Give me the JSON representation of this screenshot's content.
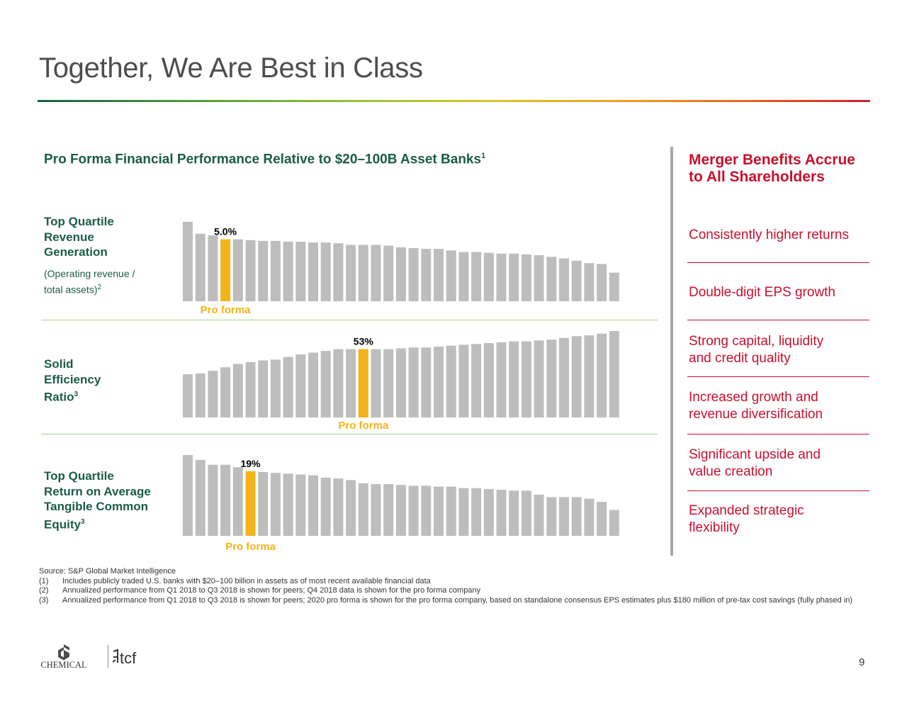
{
  "header": {
    "title": "Together, We Are Best in Class"
  },
  "section": {
    "heading": "Pro Forma Financial Performance Relative to $20–100B Asset Banks",
    "heading_sup": "1"
  },
  "metrics": [
    {
      "label_lines": [
        "Top Quartile",
        "Revenue",
        "Generation"
      ],
      "sub_lines": [
        "(Operating revenue /",
        "total assets)"
      ],
      "sub_sup": "2"
    },
    {
      "label_lines": [
        "Solid",
        "Efficiency",
        "Ratio"
      ],
      "label_sup": "3"
    },
    {
      "label_lines": [
        "Top Quartile",
        "Return on Average",
        "Tangible Common",
        "Equity"
      ],
      "label_sup": "3"
    }
  ],
  "chart_data": [
    {
      "type": "bar",
      "title": "",
      "highlight_label": "5.0%",
      "highlight_caption": "Pro forma",
      "highlight_index": 3,
      "colors": {
        "bar": "#bdbdbd",
        "highlight": "#f5b31a"
      },
      "ylim": [
        0,
        1
      ],
      "values": [
        1.0,
        0.85,
        0.83,
        0.78,
        0.78,
        0.77,
        0.76,
        0.76,
        0.75,
        0.75,
        0.74,
        0.74,
        0.73,
        0.71,
        0.71,
        0.71,
        0.7,
        0.68,
        0.67,
        0.66,
        0.66,
        0.64,
        0.62,
        0.62,
        0.61,
        0.6,
        0.6,
        0.59,
        0.58,
        0.56,
        0.54,
        0.51,
        0.48,
        0.47,
        0.36
      ]
    },
    {
      "type": "bar",
      "title": "",
      "highlight_label": "53%",
      "highlight_caption": "Pro forma",
      "highlight_index": 14,
      "colors": {
        "bar": "#bdbdbd",
        "highlight": "#f5b31a"
      },
      "ylim": [
        0,
        1
      ],
      "values": [
        0.5,
        0.51,
        0.54,
        0.58,
        0.62,
        0.64,
        0.66,
        0.67,
        0.7,
        0.73,
        0.75,
        0.77,
        0.79,
        0.79,
        0.79,
        0.79,
        0.79,
        0.8,
        0.81,
        0.81,
        0.82,
        0.83,
        0.84,
        0.85,
        0.86,
        0.87,
        0.88,
        0.88,
        0.89,
        0.9,
        0.92,
        0.94,
        0.95,
        0.97,
        1.0
      ]
    },
    {
      "type": "bar",
      "title": "",
      "highlight_label": "19%",
      "highlight_caption": "Pro forma",
      "highlight_index": 5,
      "colors": {
        "bar": "#bdbdbd",
        "highlight": "#f5b31a"
      },
      "ylim": [
        0,
        1
      ],
      "values": [
        1.0,
        0.94,
        0.88,
        0.88,
        0.85,
        0.8,
        0.79,
        0.78,
        0.77,
        0.76,
        0.75,
        0.72,
        0.71,
        0.69,
        0.65,
        0.64,
        0.64,
        0.63,
        0.62,
        0.62,
        0.61,
        0.61,
        0.59,
        0.59,
        0.58,
        0.57,
        0.56,
        0.56,
        0.51,
        0.48,
        0.48,
        0.48,
        0.46,
        0.42,
        0.32
      ]
    }
  ],
  "benefits": {
    "heading_lines": [
      "Merger Benefits Accrue",
      "to All Shareholders"
    ],
    "items": [
      {
        "lines": [
          "Consistently higher returns"
        ]
      },
      {
        "lines": [
          "Double-digit EPS growth"
        ]
      },
      {
        "lines": [
          "Strong capital, liquidity",
          "and credit quality"
        ]
      },
      {
        "lines": [
          "Increased growth and",
          "revenue diversification"
        ]
      },
      {
        "lines": [
          "Significant upside and",
          "value creation"
        ]
      },
      {
        "lines": [
          "Expanded strategic",
          "flexibility"
        ]
      }
    ]
  },
  "footnotes": {
    "source": "Source: S&P Global Market Intelligence",
    "notes": [
      {
        "num": "(1)",
        "text": "Includes publicly traded U.S. banks with $20–100 billion in assets as of most recent available financial data"
      },
      {
        "num": "(2)",
        "text": "Annualized performance from Q1 2018 to Q3 2018 is shown for peers; Q4 2018 data is shown for the pro forma company"
      },
      {
        "num": "(3)",
        "text": "Annualized performance from Q1 2018 to Q3 2018 is shown for peers; 2020 pro forma is shown for the pro forma company, based on standalone consensus EPS estimates plus $180 million of pre-tax cost savings (fully phased in)"
      }
    ]
  },
  "logos": {
    "chemical": "CHEMICAL",
    "tcf": "tcf"
  },
  "page_number": "9"
}
